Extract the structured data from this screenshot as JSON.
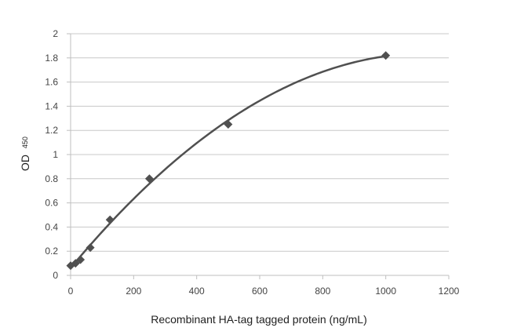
{
  "chart_data": {
    "type": "scatter",
    "title": "",
    "xlabel": "Recombinant HA-tag tagged protein (ng/mL)",
    "ylabel": {
      "main": "OD",
      "subscript": "450"
    },
    "xlim": [
      0,
      1200
    ],
    "ylim": [
      0,
      2
    ],
    "x_ticks": [
      "0",
      "200",
      "400",
      "600",
      "800",
      "1000",
      "1200"
    ],
    "y_ticks": [
      "0",
      "0.2",
      "0.4",
      "0.6",
      "0.8",
      "1",
      "1.2",
      "1.4",
      "1.6",
      "1.8",
      "2"
    ],
    "grid": "horizontal",
    "legend": "none",
    "marker": "diamond",
    "trendline": "polynomial",
    "colors": {
      "series": "#505050",
      "grid": "#c8c8c8",
      "axis": "#bfbfbf"
    },
    "series": [
      {
        "x": [
          0,
          15.6,
          31.25,
          62.5,
          125,
          250,
          500,
          1000
        ],
        "y": [
          0.08,
          0.1,
          0.13,
          0.23,
          0.46,
          0.8,
          1.25,
          1.82
        ]
      }
    ]
  }
}
